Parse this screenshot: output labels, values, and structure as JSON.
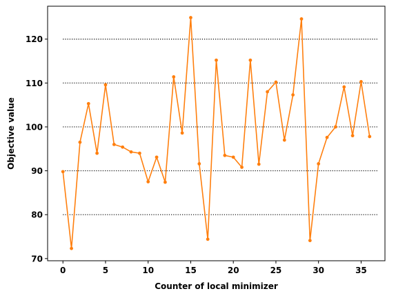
{
  "chart_data": {
    "type": "line",
    "title": "",
    "xlabel": "Counter of local minimizer",
    "ylabel": "Objective value",
    "xlim": [
      -1.8,
      37.8
    ],
    "ylim": [
      69.5,
      127.5
    ],
    "xticks": [
      0,
      5,
      10,
      15,
      20,
      25,
      30,
      35
    ],
    "yticks": [
      70,
      80,
      90,
      100,
      110,
      120
    ],
    "grid": "dotted horizontal lines at y = 80, 90, 100, 110, 120",
    "hlines": [
      {
        "y": 80,
        "x_from": 0,
        "x_to": 37
      },
      {
        "y": 90,
        "x_from": 0,
        "x_to": 37
      },
      {
        "y": 100,
        "x_from": 0,
        "x_to": 37
      },
      {
        "y": 110,
        "x_from": 0,
        "x_to": 37
      },
      {
        "y": 120,
        "x_from": 0,
        "x_to": 37
      }
    ],
    "series": [
      {
        "color": "#ff7f0e",
        "marker": "circle",
        "x": [
          0,
          1,
          2,
          3,
          4,
          5,
          6,
          7,
          8,
          9,
          10,
          11,
          12,
          13,
          14,
          15,
          16,
          17,
          18,
          19,
          20,
          21,
          22,
          23,
          24,
          25,
          26,
          27,
          28,
          29,
          30,
          31,
          32,
          33,
          34,
          35,
          36
        ],
        "values": [
          89.8,
          72.3,
          96.5,
          105.3,
          94.0,
          109.6,
          96.0,
          95.4,
          94.3,
          94.0,
          87.5,
          93.1,
          87.4,
          111.4,
          98.6,
          124.9,
          91.6,
          74.4,
          115.2,
          93.5,
          93.1,
          90.8,
          115.2,
          91.5,
          108.0,
          110.2,
          97.0,
          107.3,
          124.6,
          74.1,
          91.6,
          97.6,
          100.0,
          109.1,
          98.0,
          110.3,
          97.8
        ]
      }
    ]
  }
}
